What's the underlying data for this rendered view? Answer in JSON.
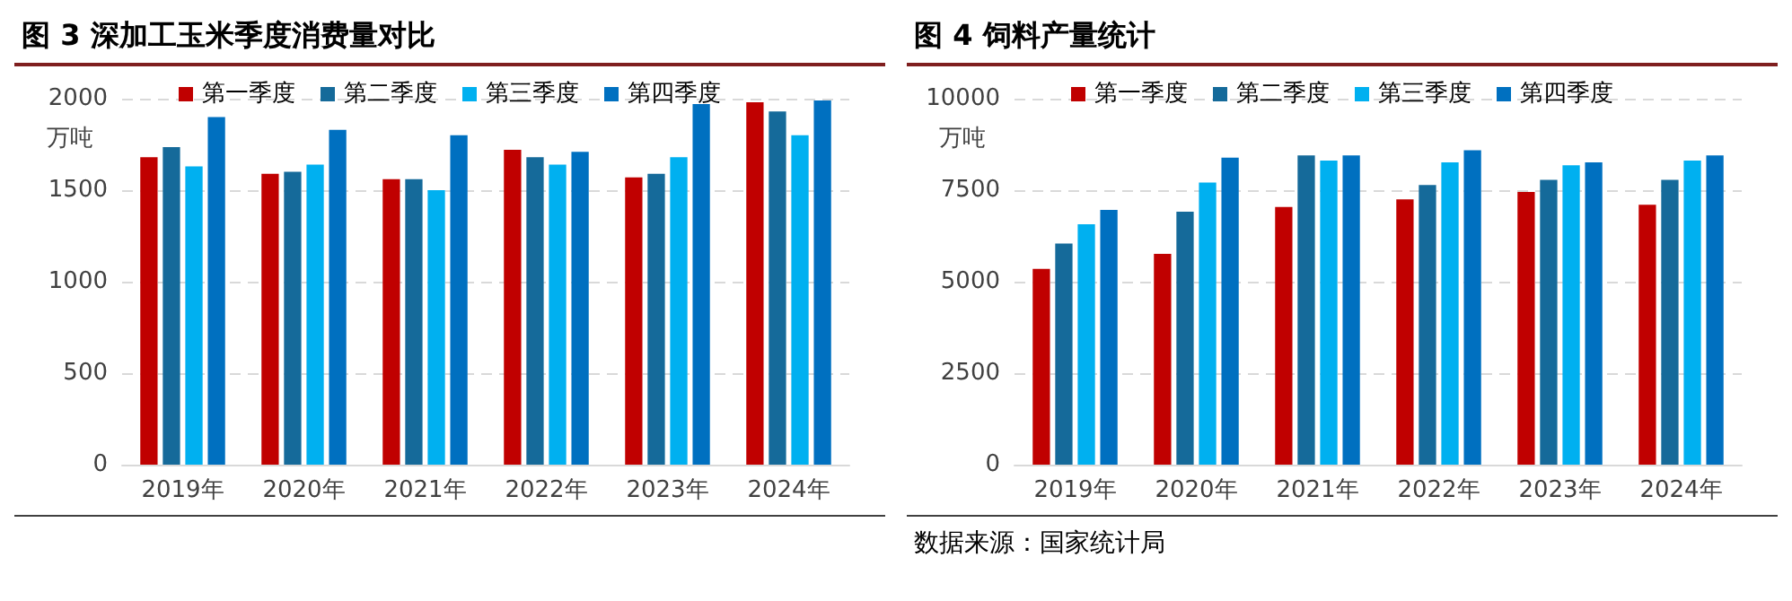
{
  "chart_data": [
    {
      "type": "bar",
      "title": "图 3 深加工玉米季度消费量对比",
      "ylabel": "万吨",
      "categories": [
        "2019年",
        "2020年",
        "2021年",
        "2022年",
        "2023年",
        "2024年"
      ],
      "series": [
        {
          "name": "第一季度",
          "color": "#c00000",
          "values": [
            1680,
            1590,
            1560,
            1720,
            1570,
            1980
          ]
        },
        {
          "name": "第二季度",
          "color": "#156a9a",
          "values": [
            1735,
            1600,
            1560,
            1680,
            1590,
            1930
          ]
        },
        {
          "name": "第三季度",
          "color": "#00b0f0",
          "values": [
            1630,
            1640,
            1500,
            1640,
            1680,
            1800
          ]
        },
        {
          "name": "第四季度",
          "color": "#0070c0",
          "values": [
            1900,
            1830,
            1800,
            1710,
            1970,
            1990
          ]
        }
      ],
      "ylim": [
        0,
        2000
      ],
      "yticks": [
        0,
        500,
        1000,
        1500,
        2000
      ],
      "grid": "y",
      "legend": "top"
    },
    {
      "type": "bar",
      "title": "图 4 饲料产量统计",
      "ylabel": "万吨",
      "categories": [
        "2019年",
        "2020年",
        "2021年",
        "2022年",
        "2023年",
        "2024年"
      ],
      "series": [
        {
          "name": "第一季度",
          "color": "#c00000",
          "values": [
            5350,
            5760,
            7040,
            7250,
            7450,
            7100
          ]
        },
        {
          "name": "第二季度",
          "color": "#156a9a",
          "values": [
            6040,
            6910,
            8450,
            7640,
            7780,
            7780
          ]
        },
        {
          "name": "第三季度",
          "color": "#00b0f0",
          "values": [
            6570,
            7710,
            8310,
            8260,
            8180,
            8310
          ]
        },
        {
          "name": "第四季度",
          "color": "#0070c0",
          "values": [
            6960,
            8390,
            8450,
            8590,
            8260,
            8450
          ]
        }
      ],
      "ylim": [
        0,
        10000
      ],
      "yticks": [
        0,
        2500,
        5000,
        7500,
        10000
      ],
      "grid": "y",
      "legend": "top",
      "annotations": [
        "数据来源：国家统计局"
      ]
    }
  ]
}
